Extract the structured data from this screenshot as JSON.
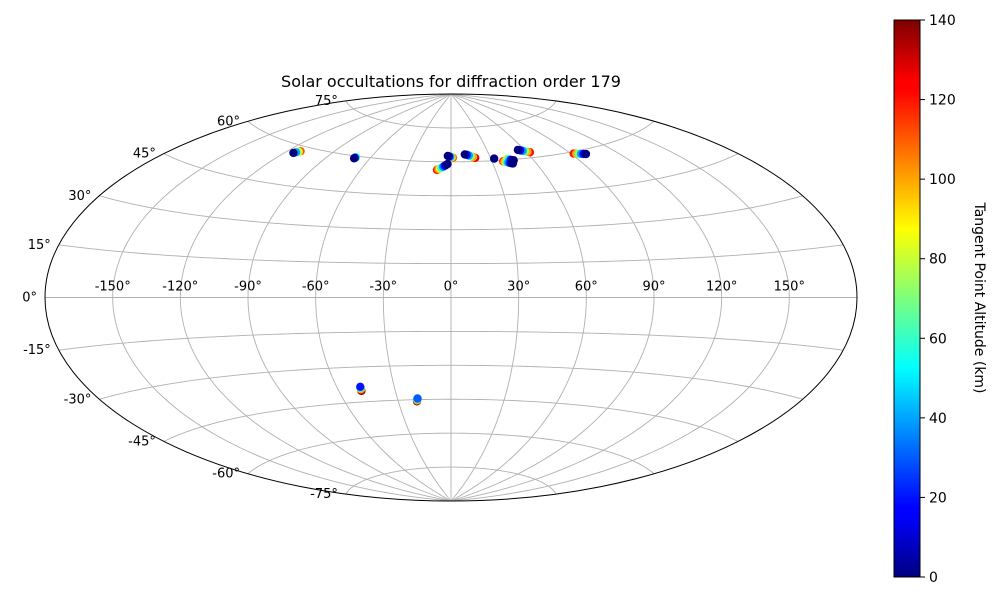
{
  "chart_data": {
    "type": "scatter",
    "projection": "aitoff",
    "title": "Solar occultations for diffraction order 179",
    "colorbar": {
      "label": "Tangent Point Altitude (km)",
      "colormap": "jet",
      "min": 0,
      "max": 140,
      "ticks": [
        "0",
        "20",
        "40",
        "60",
        "80",
        "100",
        "120",
        "140"
      ],
      "tick_values": [
        0,
        20,
        40,
        60,
        80,
        100,
        120,
        140
      ]
    },
    "lon_ticks": [
      {
        "value": -150,
        "label": "-150°"
      },
      {
        "value": -120,
        "label": "-120°"
      },
      {
        "value": -90,
        "label": "-90°"
      },
      {
        "value": -60,
        "label": "-60°"
      },
      {
        "value": -30,
        "label": "-30°"
      },
      {
        "value": 0,
        "label": "0°"
      },
      {
        "value": 30,
        "label": "30°"
      },
      {
        "value": 60,
        "label": "60°"
      },
      {
        "value": 90,
        "label": "90°"
      },
      {
        "value": 120,
        "label": "120°"
      },
      {
        "value": 150,
        "label": "150°"
      }
    ],
    "lat_ticks": [
      {
        "value": 75,
        "label": "75°"
      },
      {
        "value": 60,
        "label": "60°"
      },
      {
        "value": 45,
        "label": "45°"
      },
      {
        "value": 30,
        "label": "30°"
      },
      {
        "value": 15,
        "label": "15°"
      },
      {
        "value": 0,
        "label": "0°"
      },
      {
        "value": -15,
        "label": "-15°"
      },
      {
        "value": -30,
        "label": "-30°"
      },
      {
        "value": -45,
        "label": "-45°"
      },
      {
        "value": -60,
        "label": "-60°"
      },
      {
        "value": -75,
        "label": "-75°"
      }
    ],
    "grid": true,
    "tracks": [
      {
        "lon": [
          -114.5,
          -113.5,
          -112.5,
          -111.8
        ],
        "lat": [
          57.0,
          57.4,
          57.8,
          58.1
        ],
        "alt": [
          0,
          40,
          80,
          110
        ]
      },
      {
        "lon": [
          -71.0,
          -70.8,
          -70.5
        ],
        "lat": [
          59.0,
          59.2,
          59.5
        ],
        "alt": [
          0,
          10,
          50
        ]
      },
      {
        "lon": [
          -2.5,
          -3.5,
          -4.5,
          -5.5,
          -6.5,
          -7.5,
          -8.5,
          -9.5
        ],
        "lat": [
          59.0,
          58.6,
          58.2,
          57.8,
          57.4,
          57.0,
          56.7,
          56.4
        ],
        "alt": [
          0,
          5,
          20,
          40,
          60,
          80,
          100,
          120
        ]
      },
      {
        "lon": [
          -2.5,
          -1.5,
          -0.5,
          0.5,
          1.5
        ],
        "lat": [
          62.6,
          62.4,
          62.2,
          62.0,
          61.8
        ],
        "alt": [
          0,
          10,
          40,
          80,
          110
        ]
      },
      {
        "lon": [
          11,
          12.5,
          14,
          15.5,
          17,
          18.5
        ],
        "lat": [
          63.2,
          63.0,
          62.7,
          62.4,
          62.0,
          61.6
        ],
        "alt": [
          0,
          20,
          40,
          70,
          100,
          125
        ]
      },
      {
        "lon": [
          32.5
        ],
        "lat": [
          60.9
        ],
        "alt": [
          0
        ]
      },
      {
        "lon": [
          38,
          39,
          40,
          41,
          42,
          43,
          44
        ],
        "lat": [
          59.5,
          59.3,
          59.1,
          58.9,
          58.7,
          58.5,
          58.3
        ],
        "alt": [
          115,
          95,
          70,
          45,
          25,
          10,
          0
        ]
      },
      {
        "lon": [
          42,
          43,
          44,
          45,
          46
        ],
        "lat": [
          60.5,
          60.1,
          59.9,
          59.7,
          59.6
        ],
        "alt": [
          80,
          50,
          20,
          5,
          0
        ]
      },
      {
        "lon": [
          55,
          56.5,
          58,
          59.5,
          61,
          62.5
        ],
        "lat": [
          63.8,
          63.5,
          63.2,
          62.9,
          62.6,
          62.3
        ],
        "alt": [
          0,
          15,
          40,
          70,
          100,
          120
        ]
      },
      {
        "lon": [
          92,
          93.5,
          95,
          96.5,
          98,
          99.5
        ],
        "lat": [
          59.3,
          59.1,
          58.9,
          58.7,
          58.5,
          58.3
        ],
        "alt": [
          120,
          100,
          70,
          40,
          15,
          0
        ]
      },
      {
        "lon": [
          -47.8,
          -47.9,
          -48.0,
          -48.1
        ],
        "lat": [
          -38.5,
          -39.0,
          -39.6,
          -40.3
        ],
        "alt": [
          20,
          60,
          100,
          135
        ]
      },
      {
        "lon": [
          -18.8,
          -19.0,
          -19.2,
          -19.4
        ],
        "lat": [
          -44.5,
          -44.9,
          -45.3,
          -45.7
        ],
        "alt": [
          30,
          60,
          100,
          135
        ]
      }
    ]
  }
}
